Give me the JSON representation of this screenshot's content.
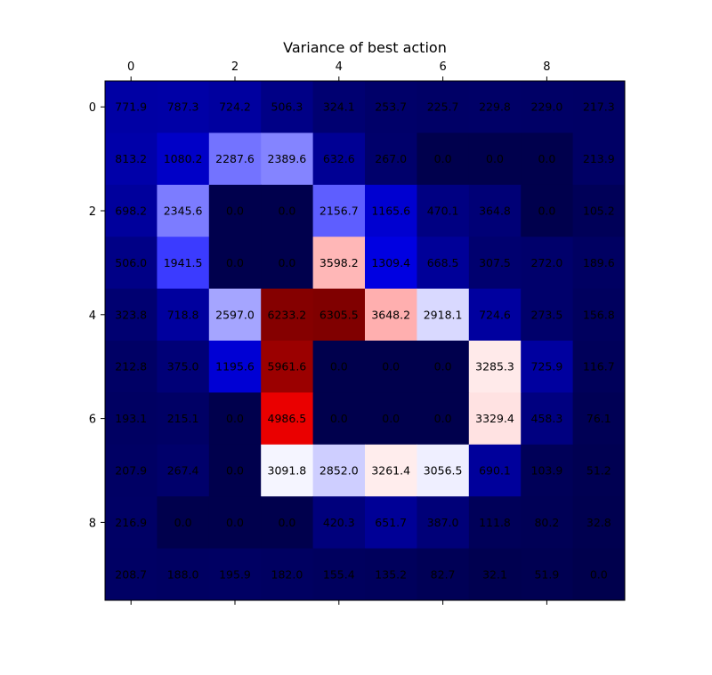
{
  "chart_data": {
    "type": "heatmap",
    "title": "Variance of best action",
    "xlabel": "",
    "ylabel": "",
    "colormap": "seismic",
    "vmin": 0,
    "vmax": 6305.5,
    "x_ticks": [
      "0",
      "2",
      "4",
      "6",
      "8"
    ],
    "x_tick_values": [
      0,
      2,
      4,
      6,
      8
    ],
    "x_ticks_position": "top",
    "y_ticks": [
      "0",
      "2",
      "4",
      "6",
      "8"
    ],
    "y_tick_values": [
      0,
      2,
      4,
      6,
      8
    ],
    "rows": [
      [
        771.9,
        787.3,
        724.2,
        506.3,
        324.1,
        253.7,
        225.7,
        229.8,
        229.0,
        217.3
      ],
      [
        813.2,
        1080.2,
        2287.6,
        2389.6,
        632.6,
        267.0,
        0.0,
        0.0,
        0.0,
        213.9
      ],
      [
        698.2,
        2345.6,
        0.0,
        0.0,
        2156.7,
        1165.6,
        470.1,
        364.8,
        0.0,
        105.2
      ],
      [
        506.0,
        1941.5,
        0.0,
        0.0,
        3598.2,
        1309.4,
        668.5,
        307.5,
        272.0,
        189.6
      ],
      [
        323.8,
        718.8,
        2597.0,
        6233.2,
        6305.5,
        3648.2,
        2918.1,
        724.6,
        273.5,
        156.8
      ],
      [
        212.8,
        375.0,
        1195.6,
        5961.6,
        0.0,
        0.0,
        0.0,
        3285.3,
        725.9,
        116.7
      ],
      [
        193.1,
        215.1,
        0.0,
        4986.5,
        0.0,
        0.0,
        0.0,
        3329.4,
        458.3,
        76.1
      ],
      [
        207.9,
        267.4,
        0.0,
        3091.8,
        2852.0,
        3261.4,
        3056.5,
        690.1,
        103.9,
        51.2
      ],
      [
        216.9,
        0.0,
        0.0,
        0.0,
        420.3,
        651.7,
        387.0,
        111.8,
        80.2,
        32.8
      ],
      [
        208.7,
        188.0,
        195.9,
        182.0,
        155.4,
        135.2,
        82.7,
        32.1,
        51.9,
        0.0
      ]
    ]
  }
}
